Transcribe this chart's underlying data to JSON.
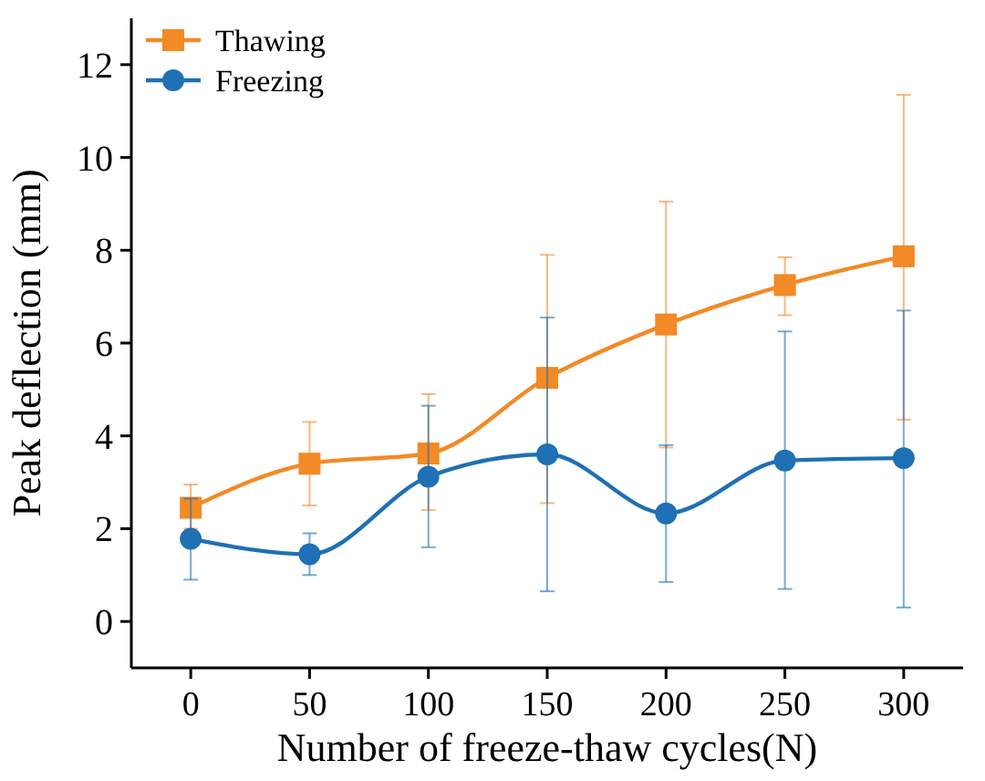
{
  "chart_data": {
    "type": "line",
    "xlabel": "Number of freeze-thaw cycles(N)",
    "ylabel": "Peak deflection (mm)",
    "x": [
      0,
      50,
      100,
      150,
      200,
      250,
      300
    ],
    "xlim": [
      -25,
      325
    ],
    "xticks": [
      0,
      50,
      100,
      150,
      200,
      250,
      300
    ],
    "ylim": [
      -1,
      13
    ],
    "yticks": [
      0,
      2,
      4,
      6,
      8,
      10,
      12
    ],
    "grid": false,
    "legend": "top left",
    "series": [
      {
        "name": "Thawing",
        "color": "#f28a26",
        "marker": "square",
        "values": [
          2.45,
          3.4,
          3.62,
          5.25,
          6.4,
          7.25,
          7.87
        ],
        "errors": [
          [
            2.0,
            2.95
          ],
          [
            2.5,
            4.3
          ],
          [
            2.4,
            4.9
          ],
          [
            2.55,
            7.9
          ],
          [
            3.75,
            9.05
          ],
          [
            6.6,
            7.85
          ],
          [
            4.35,
            11.35
          ]
        ]
      },
      {
        "name": "Freezing",
        "color": "#1f70b4",
        "marker": "circle",
        "values": [
          1.78,
          1.45,
          3.12,
          3.6,
          2.33,
          3.47,
          3.52
        ],
        "errors": [
          [
            0.9,
            2.65
          ],
          [
            1.0,
            1.9
          ],
          [
            1.6,
            4.65
          ],
          [
            0.65,
            6.55
          ],
          [
            0.85,
            3.8
          ],
          [
            0.7,
            6.25
          ],
          [
            0.3,
            6.7
          ]
        ]
      }
    ]
  }
}
